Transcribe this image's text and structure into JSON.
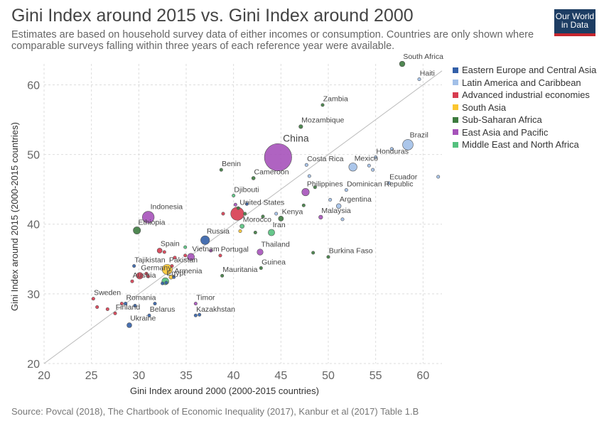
{
  "header": {
    "title": "Gini Index around 2015 vs. Gini Index around 2000",
    "subtitle": "Estimates are based on household survey data of either incomes or consumption. Countries are only shown where comparable surveys falling within three years of each reference year were available.",
    "logo_line1": "Our World",
    "logo_line2": "in Data"
  },
  "footer": {
    "source": "Source: Povcal (2018), The Chartbook of Economic Inequality (2017), Kanbur et al (2017) Table 1.B"
  },
  "colors": {
    "eeca": "#3360a9",
    "lac": "#a2c0e8",
    "aie": "#d73c50",
    "sa": "#fbc630",
    "ssa": "#3d7b3f",
    "eap": "#a652ba",
    "mena": "#55c17e"
  },
  "legend": [
    {
      "key": "eeca",
      "label": "Eastern Europe and Central Asia"
    },
    {
      "key": "lac",
      "label": "Latin America and Caribbean"
    },
    {
      "key": "aie",
      "label": "Advanced industrial economies"
    },
    {
      "key": "sa",
      "label": "South Asia"
    },
    {
      "key": "ssa",
      "label": "Sub-Saharan Africa"
    },
    {
      "key": "eap",
      "label": "East Asia and Pacific"
    },
    {
      "key": "mena",
      "label": "Middle East and North Africa"
    }
  ],
  "chart_data": {
    "type": "scatter",
    "xlabel": "Gini Index around 2000 (2000-2015 countries)",
    "ylabel": "Gini Index around 2015 (2000-2015 countries)",
    "xlim": [
      20,
      62
    ],
    "ylim": [
      20,
      63
    ],
    "xticks": [
      20,
      25,
      30,
      35,
      40,
      45,
      50,
      55,
      60
    ],
    "yticks": [
      20,
      30,
      40,
      50,
      60
    ],
    "grid": true,
    "diagonal_line": true,
    "legend_position": "right",
    "bubble_size": "population",
    "points": [
      {
        "label": "South Africa",
        "x": 57.8,
        "y": 63.0,
        "group": "ssa",
        "pop": 55
      },
      {
        "label": "Haiti",
        "x": 59.6,
        "y": 60.8,
        "group": "lac",
        "pop": 11
      },
      {
        "label": "Zambia",
        "x": 49.4,
        "y": 57.1,
        "group": "ssa",
        "pop": 16
      },
      {
        "label": "Mozambique",
        "x": 47.1,
        "y": 54.0,
        "group": "ssa",
        "pop": 28
      },
      {
        "label": "Brazil",
        "x": 58.4,
        "y": 51.4,
        "group": "lac",
        "pop": 205
      },
      {
        "label": "China",
        "x": 44.7,
        "y": 49.6,
        "group": "eap",
        "pop": 1370
      },
      {
        "label": "Honduras",
        "x": 55.0,
        "y": 49.6,
        "group": "lac",
        "pop": 9
      },
      {
        "label": "Costa Rica",
        "x": 47.7,
        "y": 48.5,
        "group": "lac",
        "pop": 5
      },
      {
        "label": "Mexico",
        "x": 52.6,
        "y": 48.2,
        "group": "lac",
        "pop": 125
      },
      {
        "label": "Benin",
        "x": 38.7,
        "y": 47.8,
        "group": "ssa",
        "pop": 11
      },
      {
        "label": "Cameroon",
        "x": 42.1,
        "y": 46.6,
        "group": "ssa",
        "pop": 23
      },
      {
        "label": "Ecuador",
        "x": 56.4,
        "y": 45.9,
        "group": "lac",
        "pop": 16
      },
      {
        "label": "Dominican Republic",
        "x": 51.9,
        "y": 44.9,
        "group": "lac",
        "pop": 10
      },
      {
        "label": "Philippines",
        "x": 47.6,
        "y": 44.6,
        "group": "eap",
        "pop": 102
      },
      {
        "label": "Djibouti",
        "x": 40.0,
        "y": 44.1,
        "group": "mena",
        "pop": 1
      },
      {
        "label": "Argentina",
        "x": 51.1,
        "y": 42.6,
        "group": "lac",
        "pop": 43
      },
      {
        "label": "Indonesia",
        "x": 31.0,
        "y": 41.0,
        "group": "eap",
        "pop": 258
      },
      {
        "label": "United States",
        "x": 40.4,
        "y": 41.5,
        "group": "aie",
        "pop": 321
      },
      {
        "label": "Malaysia",
        "x": 49.2,
        "y": 41.0,
        "group": "eap",
        "pop": 30
      },
      {
        "label": "Kenya",
        "x": 45.0,
        "y": 40.8,
        "group": "ssa",
        "pop": 47
      },
      {
        "label": "Morocco",
        "x": 40.9,
        "y": 39.7,
        "group": "mena",
        "pop": 34
      },
      {
        "label": "Ethiopia",
        "x": 29.8,
        "y": 39.1,
        "group": "ssa",
        "pop": 99
      },
      {
        "label": "Iran",
        "x": 44.0,
        "y": 38.8,
        "group": "mena",
        "pop": 79
      },
      {
        "label": "Russia",
        "x": 37.0,
        "y": 37.7,
        "group": "eeca",
        "pop": 144
      },
      {
        "label": "Spain",
        "x": 32.2,
        "y": 36.2,
        "group": "aie",
        "pop": 46
      },
      {
        "label": "Thailand",
        "x": 42.8,
        "y": 36.0,
        "group": "eap",
        "pop": 68
      },
      {
        "label": "Burkina Faso",
        "x": 50.0,
        "y": 35.3,
        "group": "ssa",
        "pop": 18
      },
      {
        "label": "Vietnam",
        "x": 35.5,
        "y": 35.3,
        "group": "eap",
        "pop": 92
      },
      {
        "label": "Portugal",
        "x": 38.6,
        "y": 35.5,
        "group": "aie",
        "pop": 10
      },
      {
        "label": "Tajikistan",
        "x": 29.5,
        "y": 34.0,
        "group": "eeca",
        "pop": 8
      },
      {
        "label": "Pakistan",
        "x": 33.0,
        "y": 33.5,
        "group": "sa",
        "pop": 189
      },
      {
        "label": "Guinea",
        "x": 42.9,
        "y": 33.7,
        "group": "ssa",
        "pop": 12
      },
      {
        "label": "Germany",
        "x": 30.1,
        "y": 32.6,
        "group": "aie",
        "pop": 81
      },
      {
        "label": "Armenia",
        "x": 33.7,
        "y": 32.4,
        "group": "eeca",
        "pop": 3
      },
      {
        "label": "Mauritania",
        "x": 38.8,
        "y": 32.6,
        "group": "ssa",
        "pop": 4
      },
      {
        "label": "Egypt",
        "x": 32.8,
        "y": 31.8,
        "group": "mena",
        "pop": 92
      },
      {
        "label": "Austria",
        "x": 29.3,
        "y": 31.8,
        "group": "aie",
        "pop": 9
      },
      {
        "label": "Sweden",
        "x": 25.2,
        "y": 29.3,
        "group": "aie",
        "pop": 10
      },
      {
        "label": "Romania",
        "x": 28.6,
        "y": 28.6,
        "group": "eeca",
        "pop": 20
      },
      {
        "label": "Timor",
        "x": 36.0,
        "y": 28.6,
        "group": "eap",
        "pop": 1
      },
      {
        "label": "Finland",
        "x": 27.5,
        "y": 27.2,
        "group": "aie",
        "pop": 5
      },
      {
        "label": "Belarus",
        "x": 31.1,
        "y": 26.9,
        "group": "eeca",
        "pop": 9
      },
      {
        "label": "Kazakhstan",
        "x": 36.0,
        "y": 26.9,
        "group": "eeca",
        "pop": 18
      },
      {
        "label": "Ukraine",
        "x": 29.0,
        "y": 25.5,
        "group": "eeca",
        "pop": 45
      },
      {
        "label": "",
        "x": 61.6,
        "y": 46.8,
        "group": "lac",
        "pop": 5
      },
      {
        "label": "",
        "x": 54.3,
        "y": 48.4,
        "group": "lac",
        "pop": 5
      },
      {
        "label": "",
        "x": 54.7,
        "y": 47.8,
        "group": "lac",
        "pop": 5
      },
      {
        "label": "",
        "x": 56.7,
        "y": 50.8,
        "group": "lac",
        "pop": 5
      },
      {
        "label": "",
        "x": 50.2,
        "y": 43.5,
        "group": "lac",
        "pop": 5
      },
      {
        "label": "",
        "x": 51.5,
        "y": 40.7,
        "group": "lac",
        "pop": 5
      },
      {
        "label": "",
        "x": 48.0,
        "y": 46.9,
        "group": "lac",
        "pop": 5
      },
      {
        "label": "",
        "x": 44.5,
        "y": 41.5,
        "group": "lac",
        "pop": 4
      },
      {
        "label": "",
        "x": 47.4,
        "y": 42.7,
        "group": "ssa",
        "pop": 6
      },
      {
        "label": "",
        "x": 48.6,
        "y": 45.3,
        "group": "ssa",
        "pop": 5
      },
      {
        "label": "",
        "x": 43.1,
        "y": 41.1,
        "group": "ssa",
        "pop": 7
      },
      {
        "label": "",
        "x": 40.5,
        "y": 42.3,
        "group": "ssa",
        "pop": 6
      },
      {
        "label": "",
        "x": 41.2,
        "y": 41.5,
        "group": "ssa",
        "pop": 5
      },
      {
        "label": "",
        "x": 42.3,
        "y": 38.8,
        "group": "ssa",
        "pop": 4
      },
      {
        "label": "",
        "x": 48.4,
        "y": 35.9,
        "group": "ssa",
        "pop": 3
      },
      {
        "label": "",
        "x": 40.2,
        "y": 42.8,
        "group": "eap",
        "pop": 4
      },
      {
        "label": "",
        "x": 38.9,
        "y": 41.5,
        "group": "aie",
        "pop": 5
      },
      {
        "label": "",
        "x": 40.7,
        "y": 39.0,
        "group": "sa",
        "pop": 5
      },
      {
        "label": "",
        "x": 41.4,
        "y": 42.9,
        "group": "eeca",
        "pop": 6
      },
      {
        "label": "",
        "x": 37.6,
        "y": 36.2,
        "group": "eap",
        "pop": 4
      },
      {
        "label": "",
        "x": 34.9,
        "y": 36.7,
        "group": "mena",
        "pop": 4
      },
      {
        "label": "",
        "x": 33.8,
        "y": 35.2,
        "group": "aie",
        "pop": 6
      },
      {
        "label": "",
        "x": 34.9,
        "y": 35.5,
        "group": "aie",
        "pop": 14
      },
      {
        "label": "",
        "x": 32.7,
        "y": 36.0,
        "group": "aie",
        "pop": 4
      },
      {
        "label": "",
        "x": 30.8,
        "y": 32.9,
        "group": "aie",
        "pop": 6
      },
      {
        "label": "",
        "x": 31.0,
        "y": 32.5,
        "group": "aie",
        "pop": 5
      },
      {
        "label": "",
        "x": 33.5,
        "y": 34.0,
        "group": "aie",
        "pop": 5
      },
      {
        "label": "",
        "x": 32.9,
        "y": 31.6,
        "group": "eeca",
        "pop": 5
      },
      {
        "label": "",
        "x": 33.4,
        "y": 32.4,
        "group": "sa",
        "pop": 30
      },
      {
        "label": "",
        "x": 32.5,
        "y": 31.5,
        "group": "eeca",
        "pop": 4
      },
      {
        "label": "",
        "x": 25.6,
        "y": 28.1,
        "group": "aie",
        "pop": 3
      },
      {
        "label": "",
        "x": 26.7,
        "y": 27.8,
        "group": "aie",
        "pop": 3
      },
      {
        "label": "",
        "x": 28.2,
        "y": 28.6,
        "group": "aie",
        "pop": 4
      },
      {
        "label": "",
        "x": 31.7,
        "y": 28.6,
        "group": "eeca",
        "pop": 3
      },
      {
        "label": "",
        "x": 36.4,
        "y": 27.0,
        "group": "eeca",
        "pop": 3
      },
      {
        "label": "",
        "x": 29.6,
        "y": 28.3,
        "group": "eeca",
        "pop": 4
      }
    ]
  }
}
